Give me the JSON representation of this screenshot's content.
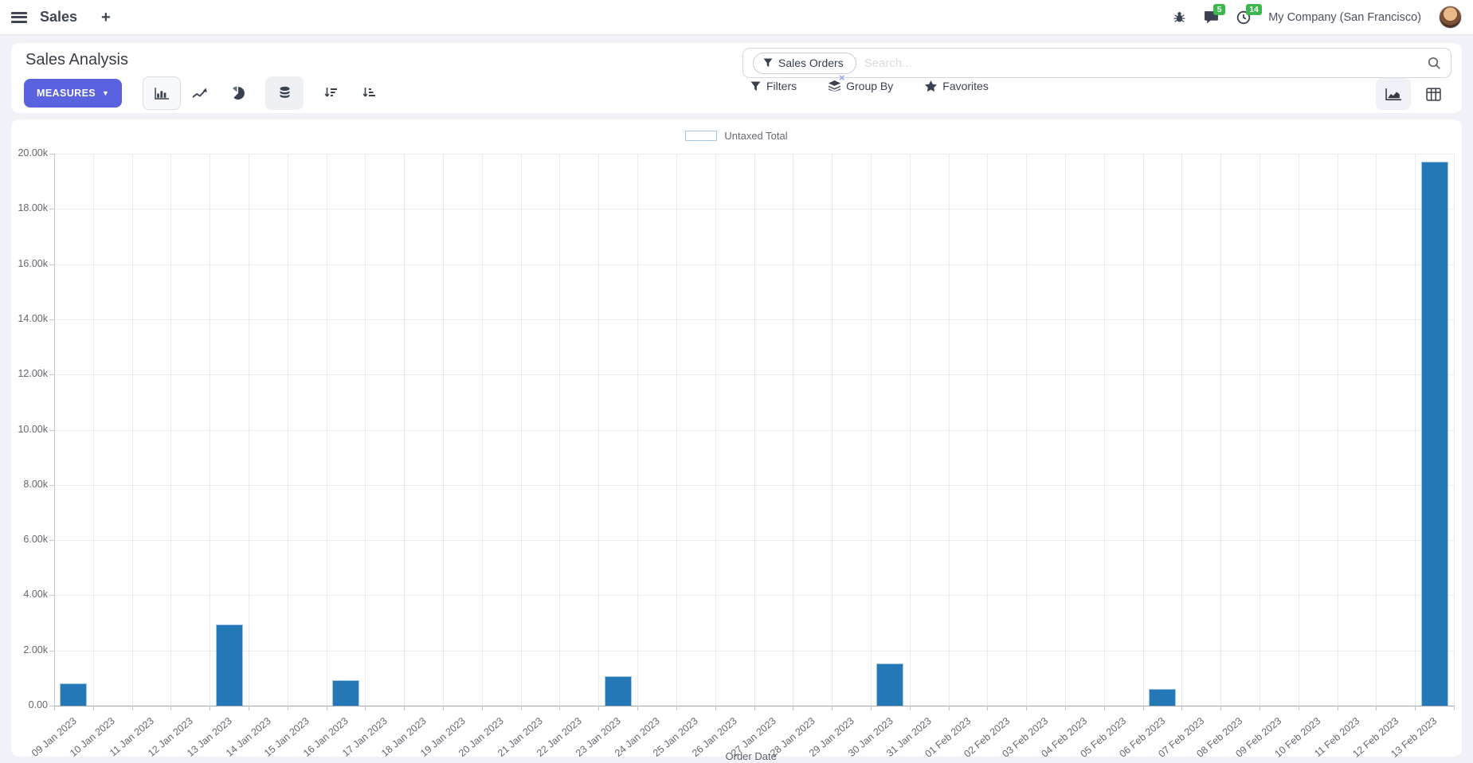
{
  "navbar": {
    "app_name": "Sales",
    "new_button": "+",
    "message_badge": "5",
    "activity_badge": "14",
    "company": "My Company (San Francisco)"
  },
  "control_panel": {
    "title": "Sales Analysis",
    "measures_label": "MEASURES",
    "search": {
      "facet": "Sales Orders",
      "placeholder": "Search...",
      "facet_close": "×"
    },
    "filter_menus": [
      {
        "label": "Filters"
      },
      {
        "label": "Group By"
      },
      {
        "label": "Favorites"
      }
    ]
  },
  "colors": {
    "bar_fill": "#2478b5",
    "bar_border": "#a5c8e4",
    "primary_button": "#5b62df",
    "badge_green": "#3cb84e"
  },
  "chart_data": {
    "type": "bar",
    "legend": [
      {
        "label": "Untaxed Total",
        "color": "#2478b5"
      }
    ],
    "xlabel": "Order Date",
    "ylabel": "",
    "ylim": [
      0,
      20000
    ],
    "ytick_step": 2000,
    "ytick_labels": [
      "20.00k",
      "18.00k",
      "16.00k",
      "14.00k",
      "12.00k",
      "10.00k",
      "8.00k",
      "6.00k",
      "4.00k",
      "2.00k",
      "0.00"
    ],
    "grid": true,
    "legend_position": "top",
    "categories": [
      "09 Jan 2023",
      "10 Jan 2023",
      "11 Jan 2023",
      "12 Jan 2023",
      "13 Jan 2023",
      "14 Jan 2023",
      "15 Jan 2023",
      "16 Jan 2023",
      "17 Jan 2023",
      "18 Jan 2023",
      "19 Jan 2023",
      "20 Jan 2023",
      "21 Jan 2023",
      "22 Jan 2023",
      "23 Jan 2023",
      "24 Jan 2023",
      "25 Jan 2023",
      "26 Jan 2023",
      "27 Jan 2023",
      "28 Jan 2023",
      "29 Jan 2023",
      "30 Jan 2023",
      "31 Jan 2023",
      "01 Feb 2023",
      "02 Feb 2023",
      "03 Feb 2023",
      "04 Feb 2023",
      "05 Feb 2023",
      "06 Feb 2023",
      "07 Feb 2023",
      "08 Feb 2023",
      "09 Feb 2023",
      "10 Feb 2023",
      "11 Feb 2023",
      "12 Feb 2023",
      "13 Feb 2023"
    ],
    "series": [
      {
        "name": "Untaxed Total",
        "color": "#2478b5",
        "values": [
          820,
          0,
          0,
          0,
          2950,
          0,
          0,
          910,
          0,
          0,
          0,
          0,
          0,
          0,
          1060,
          0,
          0,
          0,
          0,
          0,
          0,
          1530,
          0,
          0,
          0,
          0,
          0,
          0,
          600,
          0,
          0,
          0,
          0,
          0,
          0,
          19700
        ]
      }
    ]
  }
}
